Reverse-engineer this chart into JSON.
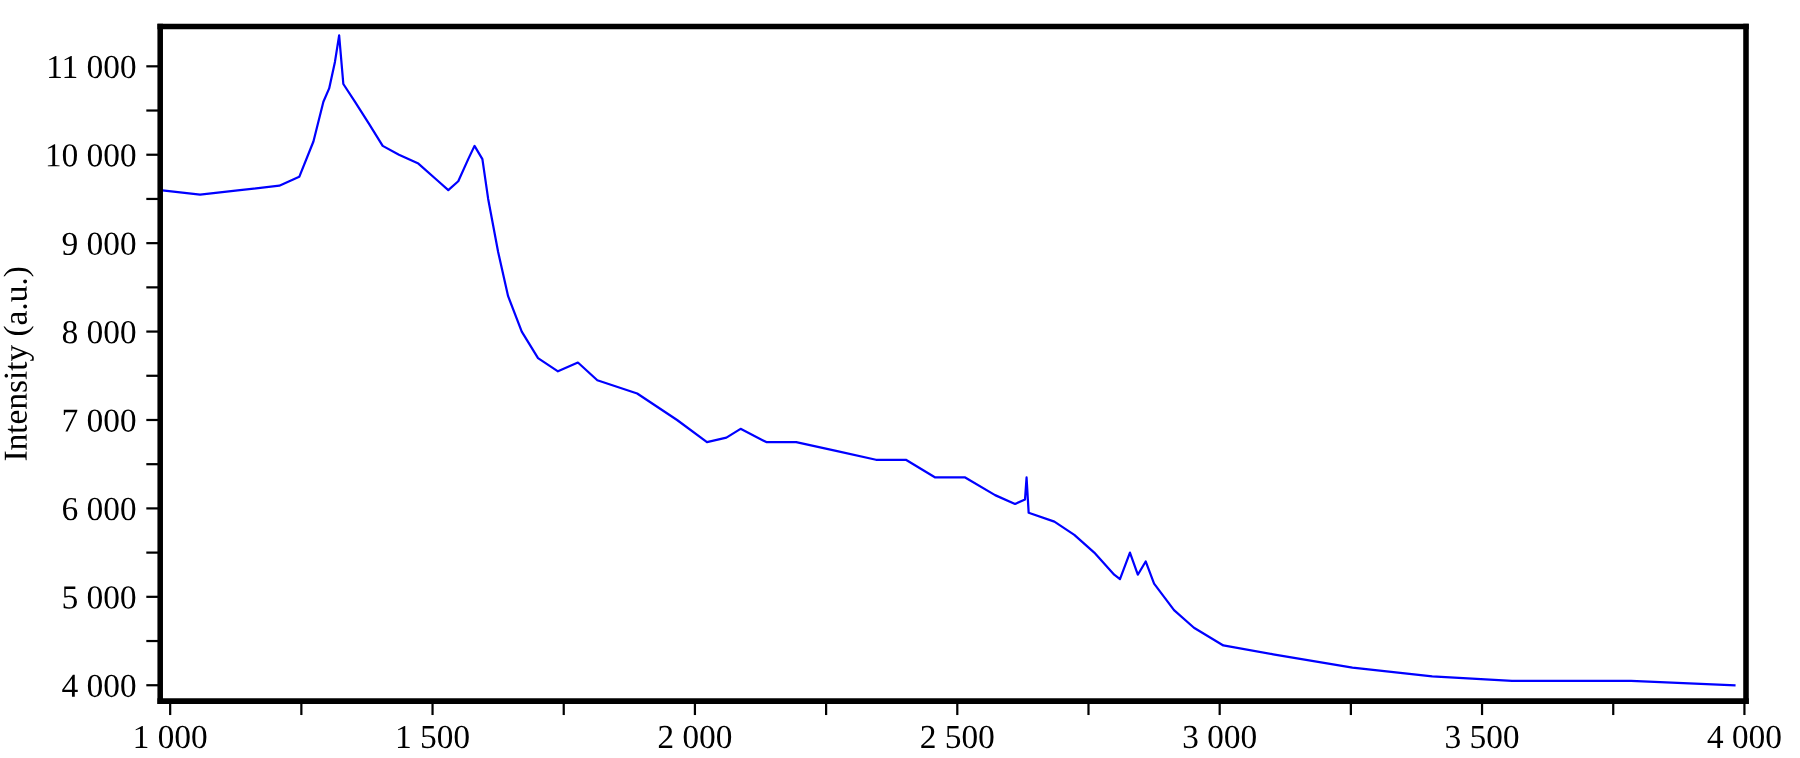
{
  "chart_data": {
    "type": "line",
    "ylabel": "Intensity (a.u.)",
    "xlim": [
      981,
      4003
    ],
    "ylim": [
      3820,
      11450
    ],
    "xticks": [
      {
        "value": 1000,
        "label": "1 000"
      },
      {
        "value": 1250,
        "label": null
      },
      {
        "value": 1500,
        "label": "1 500"
      },
      {
        "value": 1750,
        "label": null
      },
      {
        "value": 2000,
        "label": "2 000"
      },
      {
        "value": 2250,
        "label": null
      },
      {
        "value": 2500,
        "label": "2 500"
      },
      {
        "value": 2750,
        "label": null
      },
      {
        "value": 3000,
        "label": "3 000"
      },
      {
        "value": 3250,
        "label": null
      },
      {
        "value": 3500,
        "label": "3 500"
      },
      {
        "value": 3750,
        "label": null
      },
      {
        "value": 4000,
        "label": "4 000"
      }
    ],
    "yticks": [
      {
        "value": 4000,
        "label": "4 000"
      },
      {
        "value": 4500,
        "label": null
      },
      {
        "value": 5000,
        "label": "5 000"
      },
      {
        "value": 5500,
        "label": null
      },
      {
        "value": 6000,
        "label": "6 000"
      },
      {
        "value": 6500,
        "label": null
      },
      {
        "value": 7000,
        "label": "7 000"
      },
      {
        "value": 7500,
        "label": null
      },
      {
        "value": 8000,
        "label": "8 000"
      },
      {
        "value": 8500,
        "label": null
      },
      {
        "value": 9000,
        "label": "9 000"
      },
      {
        "value": 9500,
        "label": null
      },
      {
        "value": 10000,
        "label": "10 000"
      },
      {
        "value": 10500,
        "label": null
      },
      {
        "value": 11000,
        "label": "11 000"
      }
    ],
    "grid": false,
    "legend": false,
    "marker": "none",
    "line_style": "solid",
    "series": [
      {
        "color": "#0000ff",
        "x": [
          981,
          1057,
          1133,
          1208,
          1246,
          1273,
          1292,
          1303,
          1314,
          1322,
          1330,
          1352,
          1379,
          1405,
          1436,
          1473,
          1511,
          1530,
          1549,
          1568,
          1580,
          1595,
          1606,
          1625,
          1644,
          1670,
          1701,
          1739,
          1777,
          1814,
          1890,
          1966,
          2023,
          2060,
          2087,
          2136,
          2193,
          2269,
          2345,
          2402,
          2458,
          2515,
          2572,
          2610,
          2629,
          2632,
          2636,
          2685,
          2723,
          2761,
          2799,
          2810,
          2829,
          2844,
          2859,
          2875,
          2913,
          2951,
          3007,
          3102,
          3253,
          3405,
          3557,
          3784,
          3981
        ],
        "values": [
          9600,
          9550,
          9600,
          9650,
          9750,
          10150,
          10600,
          10750,
          11050,
          11350,
          10800,
          10600,
          10350,
          10100,
          10000,
          9900,
          9700,
          9600,
          9700,
          9950,
          10100,
          9950,
          9500,
          8900,
          8400,
          8000,
          7700,
          7550,
          7650,
          7450,
          7300,
          7000,
          6750,
          6800,
          6900,
          6750,
          6750,
          6650,
          6550,
          6550,
          6350,
          6350,
          6150,
          6050,
          6100,
          6350,
          5950,
          5850,
          5700,
          5500,
          5250,
          5200,
          5500,
          5250,
          5400,
          5150,
          4850,
          4650,
          4450,
          4350,
          4200,
          4100,
          4050,
          4050,
          4000
        ]
      }
    ]
  }
}
